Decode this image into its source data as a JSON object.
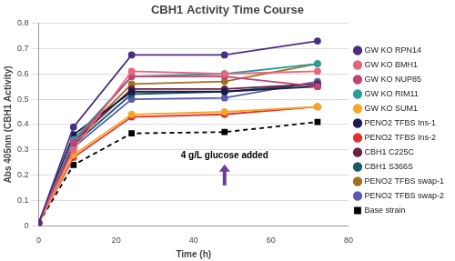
{
  "chart_data": {
    "type": "line",
    "title": "CBH1 Activity Time Course",
    "x_label": "Time (h)",
    "y_label": "Abs 405nm (CBH1 Activity)",
    "x": [
      0,
      9,
      24,
      48,
      72
    ],
    "xlim": [
      0,
      80
    ],
    "xticks": [
      0,
      20,
      40,
      60,
      80
    ],
    "ylim": [
      0,
      0.8
    ],
    "yticks": [
      0,
      0.1,
      0.2,
      0.3,
      0.4,
      0.5,
      0.6,
      0.7,
      0.8
    ],
    "grid": true,
    "legend": "right",
    "annotations": [
      {
        "text": "4 g/L glucose added",
        "x": 48,
        "y": 0.26
      }
    ],
    "series": [
      {
        "name": "GW KO RPN14",
        "color": "#4b2e83",
        "marker": "circle",
        "line_style": "solid",
        "values": [
          0.01,
          0.39,
          0.675,
          0.675,
          0.73
        ]
      },
      {
        "name": "GW KO BMH1",
        "color": "#e8667a",
        "marker": "circle",
        "line_style": "solid",
        "values": [
          0.01,
          0.3,
          0.61,
          0.6,
          0.61
        ]
      },
      {
        "name": "GW KO NUP85",
        "color": "#c0437a",
        "marker": "circle",
        "line_style": "solid",
        "values": [
          0.01,
          0.33,
          0.59,
          0.59,
          0.55
        ]
      },
      {
        "name": "GW KO RIM11",
        "color": "#2a9d9d",
        "marker": "circle",
        "line_style": "solid",
        "values": [
          0.01,
          0.34,
          0.59,
          0.6,
          0.64
        ]
      },
      {
        "name": "GW KO SUM1",
        "color": "#f5a623",
        "marker": "circle",
        "line_style": "solid",
        "values": [
          0.01,
          0.28,
          0.44,
          0.45,
          0.47
        ]
      },
      {
        "name": "PENO2 TFBS Ins-1",
        "color": "#1a1a4e",
        "marker": "circle",
        "line_style": "solid",
        "values": [
          0.01,
          0.36,
          0.53,
          0.53,
          0.55
        ]
      },
      {
        "name": "PENO2 TFBS Ins-2",
        "color": "#e03030",
        "marker": "circle",
        "line_style": "solid",
        "values": [
          0.01,
          0.27,
          0.43,
          0.44,
          0.47
        ]
      },
      {
        "name": "CBH1 C225C",
        "color": "#6b2040",
        "marker": "circle",
        "line_style": "solid",
        "values": [
          0.01,
          0.33,
          0.54,
          0.54,
          0.56
        ]
      },
      {
        "name": "CBH1 S366S",
        "color": "#1a5c6b",
        "marker": "circle",
        "line_style": "solid",
        "values": [
          0.01,
          0.32,
          0.52,
          0.53,
          0.56
        ]
      },
      {
        "name": "PENO2 TFBS swap-1",
        "color": "#a07020",
        "marker": "circle",
        "line_style": "solid",
        "values": [
          0.01,
          0.33,
          0.56,
          0.57,
          0.64
        ]
      },
      {
        "name": "PENO2 TFBS swap-2",
        "color": "#5a5ab0",
        "marker": "circle",
        "line_style": "solid",
        "values": [
          0.01,
          0.31,
          0.5,
          0.505,
          0.57
        ]
      },
      {
        "name": "Base strain",
        "color": "#000000",
        "marker": "square",
        "line_style": "dashed",
        "values": [
          0.01,
          0.24,
          0.365,
          0.37,
          0.41
        ]
      }
    ]
  }
}
